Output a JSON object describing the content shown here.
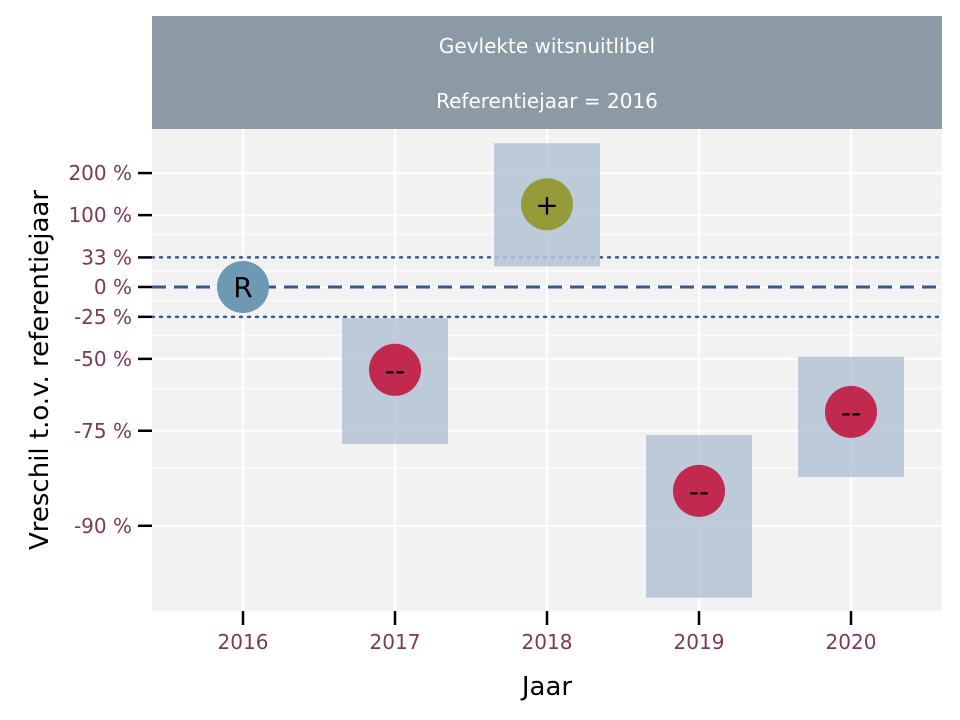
{
  "chart_data": {
    "type": "scatter",
    "title": "Gevlekte witsnuitlibel",
    "subtitle": "Referentiejaar = 2016",
    "xlabel": "Jaar",
    "ylabel": "Vreschil t.o.v. referentiejaar",
    "x_categories": [
      2016,
      2017,
      2018,
      2019,
      2020
    ],
    "y_ticks": [
      {
        "value": 200,
        "label": "200 %"
      },
      {
        "value": 100,
        "label": "100 %"
      },
      {
        "value": 33,
        "label": "33 %"
      },
      {
        "value": 0,
        "label": "0 %"
      },
      {
        "value": -25,
        "label": "-25 %"
      },
      {
        "value": -50,
        "label": "-50 %"
      },
      {
        "value": -75,
        "label": "-75 %"
      },
      {
        "value": -90,
        "label": "-90 %"
      }
    ],
    "y_scale": "log-ratio",
    "ylim": [
      -96,
      300
    ],
    "reference_lines": [
      {
        "value": 0,
        "style": "dashed"
      },
      {
        "value": 33,
        "style": "dotted"
      },
      {
        "value": -25,
        "style": "dotted"
      }
    ],
    "points": [
      {
        "year": 2016,
        "estimate": 0,
        "lower": null,
        "upper": null,
        "symbol": "R",
        "color": "#6e99b4"
      },
      {
        "year": 2017,
        "estimate": -55,
        "lower": -78,
        "upper": -26,
        "symbol": "--",
        "color": "#c1294f"
      },
      {
        "year": 2018,
        "estimate": 122,
        "lower": 22,
        "upper": 300,
        "symbol": "+",
        "color": "#959b38"
      },
      {
        "year": 2019,
        "estimate": -86,
        "lower": -95,
        "upper": -76,
        "symbol": "--",
        "color": "#c1294f"
      },
      {
        "year": 2020,
        "estimate": -70,
        "lower": -84,
        "upper": -49,
        "symbol": "--",
        "color": "#c1294f"
      }
    ],
    "grid": true,
    "colors": {
      "panel": "#f2f2f2",
      "strip": "#8b9aa5",
      "interval": "#b4c3d6",
      "reference": "#3a5a8f"
    }
  }
}
